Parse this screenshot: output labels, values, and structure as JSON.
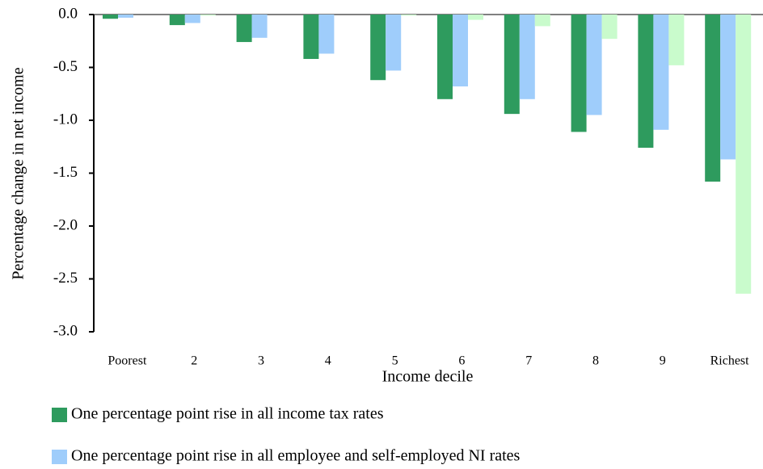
{
  "chart_data": {
    "type": "bar",
    "xlabel": "Income decile",
    "ylabel": "Percentage change in net income",
    "categories": [
      "Poorest",
      "2",
      "3",
      "4",
      "5",
      "6",
      "7",
      "8",
      "9",
      "Richest"
    ],
    "series": [
      {
        "name": "One percentage point rise in all income tax rates",
        "color": "#2e9b5e",
        "values": [
          -0.04,
          -0.1,
          -0.26,
          -0.42,
          -0.62,
          -0.8,
          -0.94,
          -1.11,
          -1.26,
          -1.58
        ]
      },
      {
        "name": "One percentage point rise in all employee and self-employed NI rates",
        "color": "#9fcdfb",
        "values": [
          -0.03,
          -0.08,
          -0.22,
          -0.37,
          -0.53,
          -0.68,
          -0.8,
          -0.95,
          -1.09,
          -1.37
        ]
      },
      {
        "color": "#c9fbcc",
        "values": [
          0,
          -0.01,
          0,
          0,
          -0.01,
          -0.05,
          -0.11,
          -0.23,
          -0.48,
          -2.64
        ]
      }
    ],
    "ylim": [
      -3,
      0
    ],
    "yticks": [
      {
        "value": 0,
        "label": "0.0"
      },
      -0.5,
      {
        "value": -1,
        "label": "-1.0"
      },
      -1.5,
      {
        "value": -2,
        "label": "-2.0"
      },
      -2.5,
      {
        "value": -3,
        "label": "-3.0"
      }
    ]
  }
}
